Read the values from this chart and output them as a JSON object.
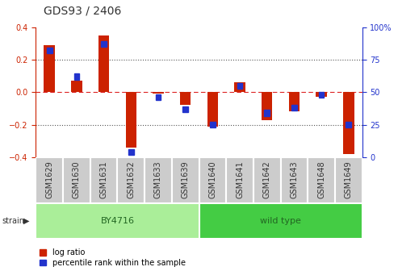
{
  "title": "GDS93 / 2406",
  "samples": [
    "GSM1629",
    "GSM1630",
    "GSM1631",
    "GSM1632",
    "GSM1633",
    "GSM1639",
    "GSM1640",
    "GSM1641",
    "GSM1642",
    "GSM1643",
    "GSM1648",
    "GSM1649"
  ],
  "log_ratio": [
    0.29,
    0.07,
    0.35,
    -0.34,
    -0.01,
    -0.08,
    -0.21,
    0.06,
    -0.17,
    -0.12,
    -0.03,
    -0.38
  ],
  "percentile_rank": [
    82,
    62,
    87,
    4,
    46,
    37,
    25,
    55,
    34,
    38,
    48,
    25
  ],
  "strain_groups": [
    {
      "label": "BY4716",
      "start": 0,
      "end": 6,
      "color": "#aaee99"
    },
    {
      "label": "wild type",
      "start": 6,
      "end": 12,
      "color": "#44cc44"
    }
  ],
  "ylim_left": [
    -0.4,
    0.4
  ],
  "ylim_right": [
    0,
    100
  ],
  "yticks_left": [
    -0.4,
    -0.2,
    0.0,
    0.2,
    0.4
  ],
  "yticks_right": [
    0,
    25,
    50,
    75,
    100
  ],
  "bar_color_red": "#cc2200",
  "bar_color_blue": "#2233cc",
  "bar_width": 0.4,
  "blue_square_size": 0.018,
  "background_color": "#ffffff",
  "zero_line_color": "#dd2222",
  "dot_line_color": "#555555",
  "title_fontsize": 10,
  "tick_fontsize": 7,
  "label_fontsize": 7,
  "strain_label_fontsize": 8,
  "box_bg_color": "#cccccc",
  "box_border_color": "#999999"
}
